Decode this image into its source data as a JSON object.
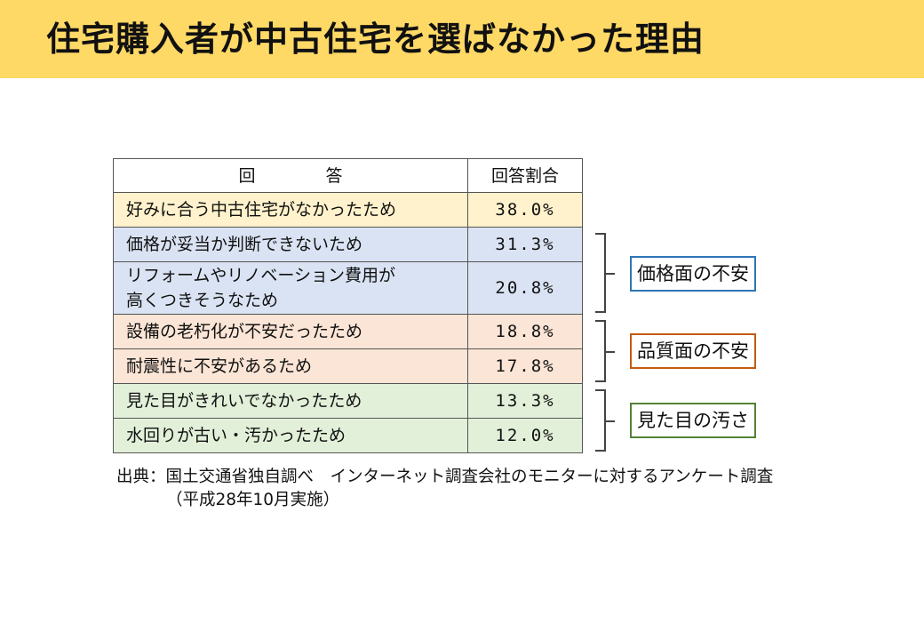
{
  "title": "住宅購入者が中古住宅を選ばなかった理由",
  "table": {
    "headers": {
      "answer": "回　答",
      "ratio": "回答割合"
    },
    "rows": [
      {
        "answer": "好みに合う中古住宅がなかったため",
        "ratio": "38.0%",
        "color": "#fff2cc"
      },
      {
        "answer": "価格が妥当か判断できないため",
        "ratio": "31.3%",
        "color": "#dae3f3"
      },
      {
        "answer_line1": "リフォームやリノベーション費用が",
        "answer_line2": "高くつきそうなため",
        "ratio": "20.8%",
        "color": "#dae3f3"
      },
      {
        "answer": "設備の老朽化が不安だったため",
        "ratio": "18.8%",
        "color": "#fbe5d6"
      },
      {
        "answer": "耐震性に不安があるため",
        "ratio": "17.8%",
        "color": "#fbe5d6"
      },
      {
        "answer": "見た目がきれいでなかったため",
        "ratio": "13.3%",
        "color": "#e2f0d9"
      },
      {
        "answer": "水回りが古い・汚かったため",
        "ratio": "12.0%",
        "color": "#e2f0d9"
      }
    ]
  },
  "groups": [
    {
      "label": "価格面の不安",
      "border_color": "#2e75b6"
    },
    {
      "label": "品質面の不安",
      "border_color": "#c55a11"
    },
    {
      "label": "見た目の汚さ",
      "border_color": "#548235"
    }
  ],
  "source": {
    "line1": "出典：国土交通省独自調べ　インターネット調査会社のモニターに対するアンケート調査",
    "line2": "（平成28年10月実施）"
  }
}
